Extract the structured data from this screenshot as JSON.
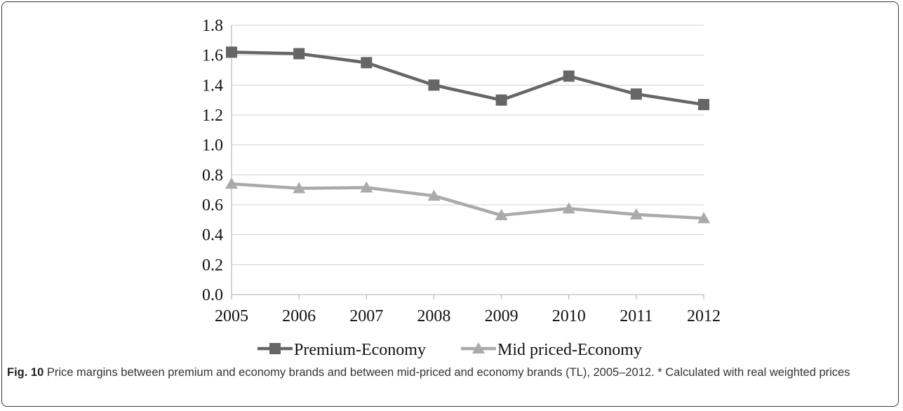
{
  "chart_data": {
    "type": "line",
    "x": [
      "2005",
      "2006",
      "2007",
      "2008",
      "2009",
      "2010",
      "2011",
      "2012"
    ],
    "series": [
      {
        "name": "Premium-Economy",
        "values": [
          1.62,
          1.61,
          1.55,
          1.4,
          1.3,
          1.46,
          1.34,
          1.27
        ],
        "color": "#666666",
        "marker": "square"
      },
      {
        "name": "Mid priced-Economy",
        "values": [
          0.74,
          0.71,
          0.715,
          0.66,
          0.53,
          0.575,
          0.535,
          0.51
        ],
        "color": "#aaaaaa",
        "marker": "triangle"
      }
    ],
    "ylim": [
      0,
      1.8
    ],
    "yticks": [
      "0.0",
      "0.2",
      "0.4",
      "0.6",
      "0.8",
      "1.0",
      "1.2",
      "1.4",
      "1.6",
      "1.8"
    ],
    "grid": true,
    "legend": "bottom"
  },
  "caption": {
    "label": "Fig. 10",
    "text": " Price margins between premium and economy brands and between mid-priced and economy brands (TL), 2005–2012. * Calculated with real weighted prices"
  }
}
